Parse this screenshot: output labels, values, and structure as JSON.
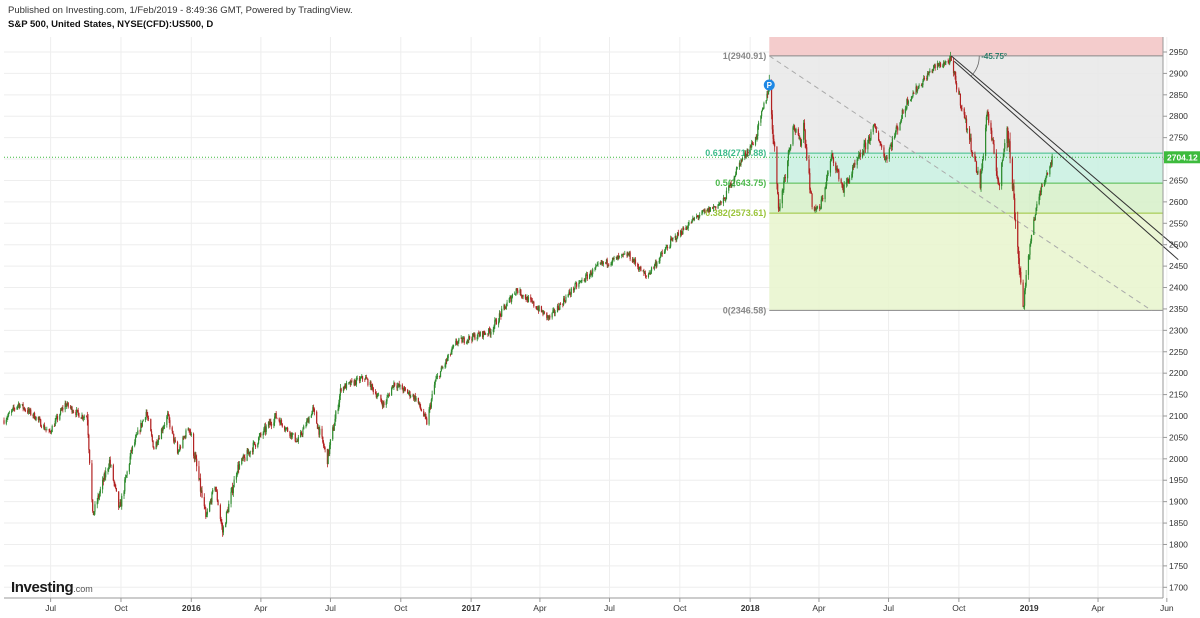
{
  "header": {
    "published": "Published on Investing.com, 1/Feb/2019 - 8:49:36 GMT, Powered by TradingView.",
    "symbol": "S&P 500, United States, NYSE(CFD):US500, D"
  },
  "logo": {
    "brand": "Investing",
    "domain": ".com"
  },
  "colors": {
    "up": "#2e8b2e",
    "down": "#b22222",
    "grid": "#eeeeee",
    "price_line": "#3dbb3d",
    "fib_red": "#f4cccc",
    "fib_grey": "#e8e8e8",
    "fib_aqua": "#c8f0e0",
    "fib_green": "#d6f0c8",
    "fib_lime": "#e8f4cc"
  },
  "chart_data": {
    "type": "candlestick",
    "title": "S&P 500, United States, NYSE(CFD):US500, D",
    "ylim": [
      1675,
      2985
    ],
    "y_ticks": [
      1700,
      1750,
      1800,
      1850,
      1900,
      1950,
      2000,
      2050,
      2100,
      2150,
      2200,
      2250,
      2300,
      2350,
      2400,
      2450,
      2500,
      2550,
      2600,
      2650,
      2700,
      2750,
      2800,
      2850,
      2900,
      2950
    ],
    "x_range": [
      "2015-05-01",
      "2019-06-25"
    ],
    "x_ticks": [
      {
        "date": "2015-07-01",
        "label": "Jul"
      },
      {
        "date": "2015-10-01",
        "label": "Oct"
      },
      {
        "date": "2016-01-01",
        "label": "2016",
        "bold": true
      },
      {
        "date": "2016-04-01",
        "label": "Apr"
      },
      {
        "date": "2016-07-01",
        "label": "Jul"
      },
      {
        "date": "2016-10-01",
        "label": "Oct"
      },
      {
        "date": "2017-01-01",
        "label": "2017",
        "bold": true
      },
      {
        "date": "2017-04-01",
        "label": "Apr"
      },
      {
        "date": "2017-07-01",
        "label": "Jul"
      },
      {
        "date": "2017-10-01",
        "label": "Oct"
      },
      {
        "date": "2018-01-01",
        "label": "2018",
        "bold": true
      },
      {
        "date": "2018-04-01",
        "label": "Apr"
      },
      {
        "date": "2018-07-01",
        "label": "Jul"
      },
      {
        "date": "2018-10-01",
        "label": "Oct"
      },
      {
        "date": "2019-01-01",
        "label": "2019",
        "bold": true
      },
      {
        "date": "2019-04-01",
        "label": "Apr"
      },
      {
        "date": "2019-06-30",
        "label": "Jun"
      }
    ],
    "current_price": {
      "value": 2704.12,
      "label": "2704.12"
    },
    "fibonacci": {
      "start_date": "2018-01-26",
      "end_date": "2019-06-25",
      "levels": [
        {
          "ratio": 1,
          "price": 2940.91,
          "label": "1(2940.91)",
          "color": "#888888"
        },
        {
          "ratio": 0.618,
          "price": 2713.88,
          "label": "0.618(2713.88)",
          "color": "#3dbb8a"
        },
        {
          "ratio": 0.5,
          "price": 2643.75,
          "label": "0.5(2643.75)",
          "color": "#4cb84c"
        },
        {
          "ratio": 0.382,
          "price": 2573.61,
          "label": "0.382(2573.61)",
          "color": "#9ac43a"
        },
        {
          "ratio": 0,
          "price": 2346.58,
          "label": "0(2346.58)",
          "color": "#888888"
        }
      ]
    },
    "trendline": {
      "from": {
        "date": "2018-01-26",
        "value": 2940.91
      },
      "to": {
        "date": "2019-06-10",
        "value": 2346.58
      }
    },
    "channel_lines": [
      {
        "from": {
          "date": "2018-09-21",
          "value": 2940.91
        },
        "to": {
          "date": "2019-07-15",
          "value": 2490
        }
      },
      {
        "from": {
          "date": "2018-09-25",
          "value": 2928
        },
        "to": {
          "date": "2019-07-15",
          "value": 2465
        }
      }
    ],
    "angle_label": "-45.75°",
    "pivot_marker": {
      "date": "2018-01-26",
      "value": 2872.87,
      "label": "P"
    },
    "price_path": [
      [
        "2015-05-01",
        2090
      ],
      [
        "2015-05-20",
        2128
      ],
      [
        "2015-06-10",
        2100
      ],
      [
        "2015-06-29",
        2060
      ],
      [
        "2015-07-20",
        2128
      ],
      [
        "2015-08-10",
        2100
      ],
      [
        "2015-08-18",
        2100
      ],
      [
        "2015-08-25",
        1867
      ],
      [
        "2015-09-16",
        1995
      ],
      [
        "2015-09-29",
        1880
      ],
      [
        "2015-10-15",
        2020
      ],
      [
        "2015-11-03",
        2110
      ],
      [
        "2015-11-13",
        2025
      ],
      [
        "2015-12-01",
        2100
      ],
      [
        "2015-12-14",
        2012
      ],
      [
        "2015-12-29",
        2078
      ],
      [
        "2016-01-20",
        1860
      ],
      [
        "2016-02-01",
        1940
      ],
      [
        "2016-02-11",
        1829
      ],
      [
        "2016-03-01",
        1978
      ],
      [
        "2016-04-20",
        2100
      ],
      [
        "2016-05-19",
        2040
      ],
      [
        "2016-06-08",
        2115
      ],
      [
        "2016-06-27",
        2000
      ],
      [
        "2016-07-15",
        2165
      ],
      [
        "2016-08-15",
        2190
      ],
      [
        "2016-09-09",
        2125
      ],
      [
        "2016-09-22",
        2177
      ],
      [
        "2016-10-21",
        2141
      ],
      [
        "2016-11-04",
        2085
      ],
      [
        "2016-11-15",
        2180
      ],
      [
        "2016-12-13",
        2272
      ],
      [
        "2017-01-26",
        2298
      ],
      [
        "2017-03-01",
        2396
      ],
      [
        "2017-04-13",
        2328
      ],
      [
        "2017-05-16",
        2400
      ],
      [
        "2017-06-19",
        2453
      ],
      [
        "2017-07-26",
        2477
      ],
      [
        "2017-08-18",
        2425
      ],
      [
        "2017-09-20",
        2508
      ],
      [
        "2017-10-23",
        2565
      ],
      [
        "2017-11-27",
        2601
      ],
      [
        "2017-12-18",
        2690
      ],
      [
        "2018-01-08",
        2747
      ],
      [
        "2018-01-26",
        2872
      ],
      [
        "2018-02-08",
        2581
      ],
      [
        "2018-02-26",
        2779
      ],
      [
        "2018-03-08",
        2738
      ],
      [
        "2018-03-12",
        2783
      ],
      [
        "2018-03-23",
        2588
      ],
      [
        "2018-04-02",
        2581
      ],
      [
        "2018-04-18",
        2708
      ],
      [
        "2018-05-03",
        2629
      ],
      [
        "2018-06-13",
        2775
      ],
      [
        "2018-06-27",
        2700
      ],
      [
        "2018-07-26",
        2837
      ],
      [
        "2018-08-29",
        2914
      ],
      [
        "2018-09-20",
        2930
      ],
      [
        "2018-10-10",
        2785
      ],
      [
        "2018-10-29",
        2641
      ],
      [
        "2018-11-07",
        2813
      ],
      [
        "2018-11-23",
        2633
      ],
      [
        "2018-12-03",
        2790
      ],
      [
        "2018-12-24",
        2351
      ],
      [
        "2019-01-04",
        2532
      ],
      [
        "2019-01-17",
        2635
      ],
      [
        "2019-02-01",
        2704
      ]
    ]
  }
}
